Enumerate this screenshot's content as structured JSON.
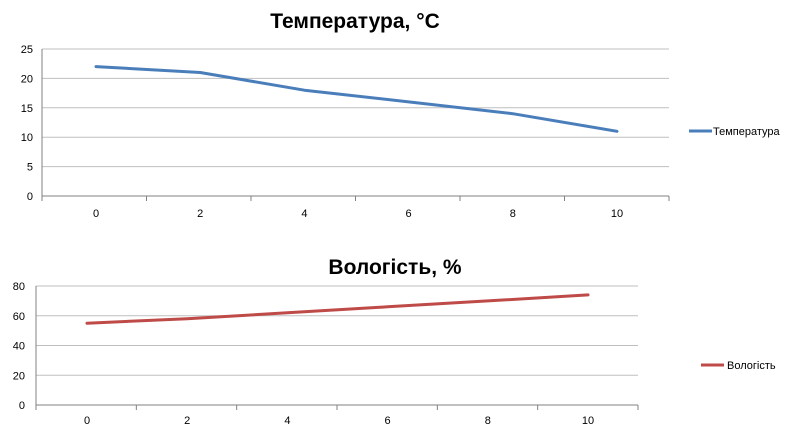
{
  "chart_data": [
    {
      "type": "line",
      "title": "Температура, °C",
      "xlabel": "",
      "ylabel": "",
      "xlim": [
        0,
        10
      ],
      "ylim": [
        0,
        25
      ],
      "x_ticks": [
        0,
        2,
        4,
        6,
        8,
        10
      ],
      "y_ticks": [
        0,
        5,
        10,
        15,
        20,
        25
      ],
      "grid": true,
      "legend": "right",
      "series": [
        {
          "name": "Температура",
          "color": "#4a7ebb",
          "x": [
            0,
            2,
            4,
            6,
            8,
            10
          ],
          "values": [
            22,
            21,
            18,
            16,
            14,
            11
          ]
        }
      ]
    },
    {
      "type": "line",
      "title": "Вологість, %",
      "xlabel": "",
      "ylabel": "",
      "xlim": [
        0,
        10
      ],
      "ylim": [
        0,
        80
      ],
      "x_ticks": [
        0,
        2,
        4,
        6,
        8,
        10
      ],
      "y_ticks": [
        0,
        20,
        40,
        60,
        80
      ],
      "grid": true,
      "legend": "right",
      "series": [
        {
          "name": "Вологість",
          "color": "#be4b48",
          "x": [
            0,
            2,
            4,
            6,
            8,
            10
          ],
          "values": [
            55,
            58,
            62,
            66,
            70,
            74
          ]
        }
      ]
    }
  ]
}
